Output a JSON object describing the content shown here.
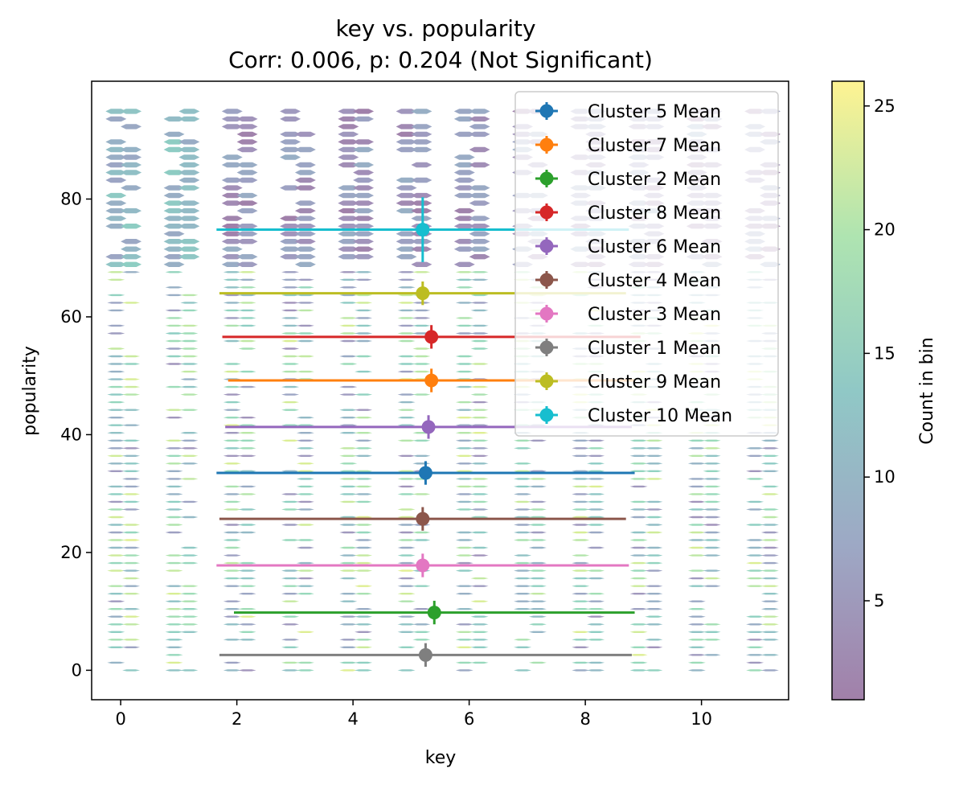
{
  "chart_data": {
    "type": "scatter",
    "title": "key vs. popularity",
    "subtitle": "Corr: 0.006, p: 0.204 (Not Significant)",
    "xlabel": "key",
    "ylabel": "popularity",
    "xlim": [
      -0.5,
      11.5
    ],
    "ylim": [
      -5,
      100
    ],
    "xticks": [
      0,
      2,
      4,
      6,
      8,
      10
    ],
    "yticks": [
      0,
      20,
      40,
      60,
      80
    ],
    "grid": false,
    "legend_position": "upper right",
    "background": {
      "type": "hexbin",
      "colormap": "viridis",
      "alpha": 0.5,
      "colorbar": {
        "label": "Count in bin",
        "range": [
          1,
          26
        ],
        "ticks": [
          5,
          10,
          15,
          20,
          25
        ]
      }
    },
    "series": [
      {
        "name": "Cluster 5 Mean",
        "color": "#1f77b4",
        "x": 5.25,
        "y": 33.5,
        "xerr": 3.6,
        "yerr": 2.0
      },
      {
        "name": "Cluster 7 Mean",
        "color": "#ff7f0e",
        "x": 5.35,
        "y": 49.2,
        "xerr": 3.5,
        "yerr": 2.0
      },
      {
        "name": "Cluster 2 Mean",
        "color": "#2ca02c",
        "x": 5.4,
        "y": 9.8,
        "xerr": 3.45,
        "yerr": 2.0
      },
      {
        "name": "Cluster 8 Mean",
        "color": "#d62728",
        "x": 5.35,
        "y": 56.6,
        "xerr": 3.6,
        "yerr": 2.0
      },
      {
        "name": "Cluster 6 Mean",
        "color": "#9467bd",
        "x": 5.3,
        "y": 41.3,
        "xerr": 3.5,
        "yerr": 2.0
      },
      {
        "name": "Cluster 4 Mean",
        "color": "#8c564b",
        "x": 5.2,
        "y": 25.7,
        "xerr": 3.5,
        "yerr": 2.0
      },
      {
        "name": "Cluster 3 Mean",
        "color": "#e377c2",
        "x": 5.2,
        "y": 17.8,
        "xerr": 3.55,
        "yerr": 2.0
      },
      {
        "name": "Cluster 1 Mean",
        "color": "#7f7f7f",
        "x": 5.25,
        "y": 2.6,
        "xerr": 3.55,
        "yerr": 2.0
      },
      {
        "name": "Cluster 9 Mean",
        "color": "#bcbd22",
        "x": 5.2,
        "y": 64.0,
        "xerr": 3.5,
        "yerr": 2.0
      },
      {
        "name": "Cluster 10 Mean",
        "color": "#17becf",
        "x": 5.2,
        "y": 74.8,
        "xerr": 3.55,
        "yerr": 5.5
      }
    ]
  }
}
